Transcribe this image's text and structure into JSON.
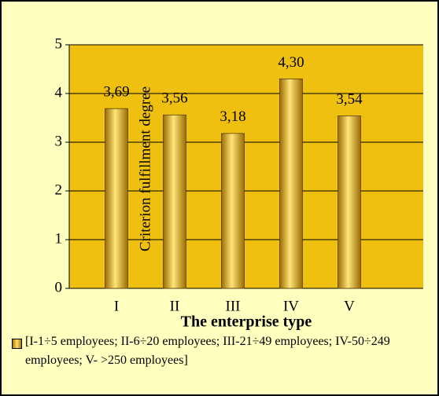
{
  "chart_data": {
    "type": "bar",
    "categories": [
      "I",
      "II",
      "III",
      "IV",
      "V"
    ],
    "series": [
      {
        "name": "[I-1÷5 employees; II-6÷20 employees; III-21÷49 employees; IV-50÷249 employees; V- >250 employees]",
        "color": "#e0b000",
        "values": [
          3.69,
          3.56,
          3.18,
          4.3,
          3.54
        ],
        "value_labels": [
          "3,69",
          "3,56",
          "3,18",
          "4,30",
          "3,54"
        ]
      }
    ],
    "x_label": "The enterprise type",
    "y_label": "Criterion fulfillment degree",
    "ylim": [
      0,
      5
    ],
    "yticks": [
      0,
      1,
      2,
      3,
      4,
      5
    ],
    "grid": true
  }
}
